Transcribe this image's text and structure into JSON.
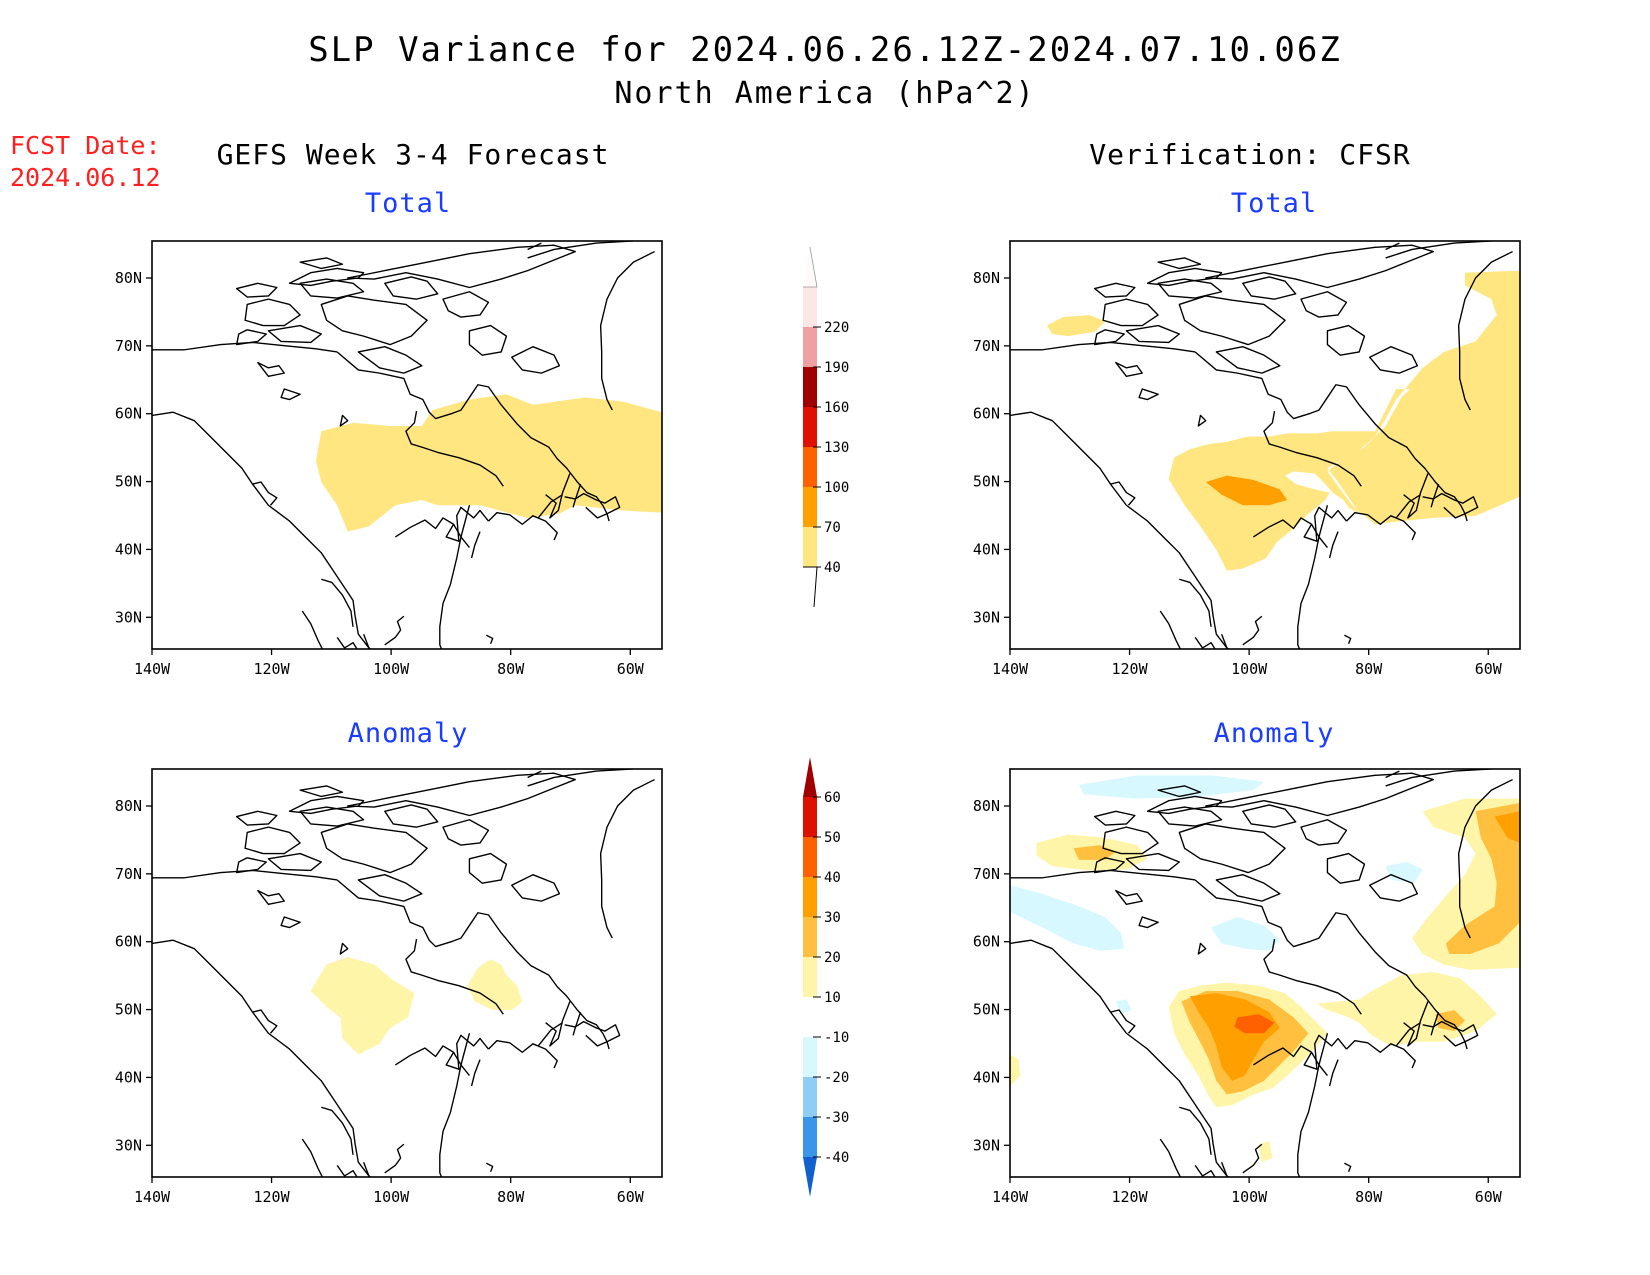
{
  "title": {
    "line1": "SLP Variance for 2024.06.26.12Z-2024.07.10.06Z",
    "line2": "North America (hPa^2)"
  },
  "fcst": {
    "label": "FCST Date:",
    "date": "2024.06.12"
  },
  "columns": {
    "left": "GEFS Week 3-4 Forecast",
    "right": "Verification: CFSR"
  },
  "panel_titles": {
    "total": "Total",
    "anomaly": "Anomaly"
  },
  "axes": {
    "lon_labels": [
      "140W",
      "120W",
      "100W",
      "80W",
      "60W"
    ],
    "lat_labels": [
      "30N",
      "40N",
      "50N",
      "60N",
      "70N",
      "80N"
    ]
  },
  "colorbars": {
    "total": {
      "levels": [
        "40",
        "70",
        "100",
        "130",
        "160",
        "190",
        "220"
      ],
      "colors": [
        "#ffe680",
        "#ffa000",
        "#ff6000",
        "#e01000",
        "#a00000",
        "#f0a0a0",
        "#fde6e6"
      ]
    },
    "anomaly": {
      "levels": [
        "60",
        "50",
        "40",
        "30",
        "20",
        "10",
        "-10",
        "-20",
        "-30",
        "-40"
      ],
      "colors": [
        "#a00000",
        "#dd1100",
        "#ff6000",
        "#ffa000",
        "#ffc040",
        "#fff5a8",
        "#ffffff",
        "#d8f8ff",
        "#90cdf5",
        "#3a96e8",
        "#1060d0"
      ]
    }
  },
  "fill_colors": {
    "light_yellow": "#fff5a8",
    "yellow": "#ffe680",
    "orange_light": "#ffc040",
    "orange": "#ffa000",
    "orange_dark": "#ff6000",
    "pale_blue": "#d8f8ff"
  }
}
